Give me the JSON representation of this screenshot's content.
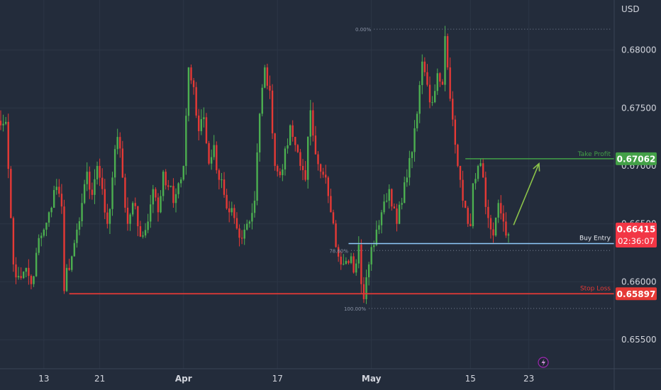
{
  "currency": "USD",
  "colors": {
    "background": "#232c3b",
    "grid": "#2c3646",
    "up": "#4caf50",
    "down": "#e53935",
    "axis_text": "#d1d4dc",
    "take_profit": "#43a047",
    "buy_entry": "#90caf9",
    "stop_loss": "#e53935",
    "current_price_bg": "#f23645",
    "arrow": "#8bc34a"
  },
  "chart_data": {
    "type": "candlestick",
    "instrument_currency": "USD",
    "ylim": [
      0.6525,
      0.6845
    ],
    "y_ticks": [
      {
        "value": 0.655,
        "label": "0.65500"
      },
      {
        "value": 0.66,
        "label": "0.66000"
      },
      {
        "value": 0.665,
        "label": "0.66500"
      },
      {
        "value": 0.67,
        "label": "0.67000"
      },
      {
        "value": 0.675,
        "label": "0.67500"
      },
      {
        "value": 0.68,
        "label": "0.68000"
      }
    ],
    "x_ticks": [
      {
        "bar": 17,
        "label": "13",
        "bold": false
      },
      {
        "bar": 39,
        "label": "21",
        "bold": false
      },
      {
        "bar": 72,
        "label": "Apr",
        "bold": true
      },
      {
        "bar": 109,
        "label": "17",
        "bold": false
      },
      {
        "bar": 146,
        "label": "May",
        "bold": true
      },
      {
        "bar": 185,
        "label": "15",
        "bold": false
      },
      {
        "bar": 208,
        "label": "23",
        "bold": false
      }
    ],
    "bar_count": 215,
    "keypoints": [
      [
        0,
        0.6735
      ],
      [
        2,
        0.6738
      ],
      [
        4,
        0.6655
      ],
      [
        5,
        0.6615
      ],
      [
        7,
        0.6605
      ],
      [
        10,
        0.6612
      ],
      [
        12,
        0.6598
      ],
      [
        14,
        0.6625
      ],
      [
        17,
        0.6645
      ],
      [
        19,
        0.666
      ],
      [
        22,
        0.6682
      ],
      [
        24,
        0.6665
      ],
      [
        25,
        0.6592
      ],
      [
        26,
        0.6612
      ],
      [
        28,
        0.6622
      ],
      [
        30,
        0.6645
      ],
      [
        32,
        0.6668
      ],
      [
        34,
        0.6695
      ],
      [
        36,
        0.6675
      ],
      [
        38,
        0.67
      ],
      [
        40,
        0.668
      ],
      [
        42,
        0.665
      ],
      [
        44,
        0.669
      ],
      [
        46,
        0.6725
      ],
      [
        48,
        0.669
      ],
      [
        50,
        0.665
      ],
      [
        52,
        0.6668
      ],
      [
        54,
        0.6648
      ],
      [
        56,
        0.664
      ],
      [
        58,
        0.6652
      ],
      [
        60,
        0.668
      ],
      [
        62,
        0.666
      ],
      [
        64,
        0.6695
      ],
      [
        66,
        0.6682
      ],
      [
        68,
        0.6668
      ],
      [
        70,
        0.6685
      ],
      [
        72,
        0.67
      ],
      [
        74,
        0.6785
      ],
      [
        76,
        0.6768
      ],
      [
        78,
        0.673
      ],
      [
        80,
        0.6742
      ],
      [
        82,
        0.6702
      ],
      [
        84,
        0.6718
      ],
      [
        86,
        0.6688
      ],
      [
        88,
        0.6675
      ],
      [
        90,
        0.666
      ],
      [
        92,
        0.6655
      ],
      [
        94,
        0.6638
      ],
      [
        96,
        0.6645
      ],
      [
        98,
        0.6652
      ],
      [
        100,
        0.667
      ],
      [
        102,
        0.6745
      ],
      [
        104,
        0.6785
      ],
      [
        106,
        0.6765
      ],
      [
        108,
        0.67
      ],
      [
        110,
        0.6692
      ],
      [
        112,
        0.6715
      ],
      [
        114,
        0.6735
      ],
      [
        116,
        0.6718
      ],
      [
        118,
        0.67
      ],
      [
        120,
        0.6688
      ],
      [
        122,
        0.6748
      ],
      [
        124,
        0.671
      ],
      [
        126,
        0.6695
      ],
      [
        128,
        0.669
      ],
      [
        130,
        0.666
      ],
      [
        132,
        0.663
      ],
      [
        134,
        0.6615
      ],
      [
        136,
        0.6618
      ],
      [
        138,
        0.6622
      ],
      [
        139,
        0.6608
      ],
      [
        141,
        0.6632
      ],
      [
        142,
        0.6598
      ],
      [
        143,
        0.6585
      ],
      [
        145,
        0.6615
      ],
      [
        146,
        0.663
      ],
      [
        148,
        0.6645
      ],
      [
        150,
        0.666
      ],
      [
        152,
        0.667
      ],
      [
        153,
        0.668
      ],
      [
        154,
        0.6665
      ],
      [
        156,
        0.665
      ],
      [
        158,
        0.6668
      ],
      [
        160,
        0.669
      ],
      [
        162,
        0.6712
      ],
      [
        164,
        0.6745
      ],
      [
        166,
        0.679
      ],
      [
        168,
        0.677
      ],
      [
        170,
        0.6755
      ],
      [
        172,
        0.678
      ],
      [
        174,
        0.677
      ],
      [
        175,
        0.6812
      ],
      [
        176,
        0.6785
      ],
      [
        178,
        0.674
      ],
      [
        180,
        0.67
      ],
      [
        182,
        0.667
      ],
      [
        184,
        0.665
      ],
      [
        185,
        0.6648
      ],
      [
        186,
        0.6685
      ],
      [
        188,
        0.67
      ],
      [
        190,
        0.669
      ],
      [
        192,
        0.6655
      ],
      [
        194,
        0.664
      ],
      [
        196,
        0.6668
      ],
      [
        198,
        0.6652
      ],
      [
        200,
        0.6641
      ]
    ],
    "fib": {
      "level_0": {
        "label": "0.00%",
        "value": 0.6818,
        "bar_start": 147
      },
      "level_100": {
        "label": "100.00%",
        "value": 0.6577,
        "bar_start": 145
      },
      "level_mid": {
        "label": "78.60%",
        "value": 0.6627,
        "bar_start": 138
      }
    },
    "levels": {
      "take_profit": {
        "label": "Take Profit",
        "value": 0.67062,
        "price_label": "0.67062",
        "bar_start": 183
      },
      "buy_entry": {
        "label": "Buy Entry",
        "value": 0.6633,
        "price_label": "0.66415",
        "countdown": "02:36:07",
        "bar_start": 137
      },
      "stop_loss": {
        "label": "Stop Loss",
        "value": 0.65897,
        "price_label": "0.65897",
        "bar_start": 27
      }
    },
    "arrow": {
      "from": [
        202,
        0.6649
      ],
      "to": [
        212,
        0.6702
      ]
    },
    "last_price": 0.66415
  }
}
